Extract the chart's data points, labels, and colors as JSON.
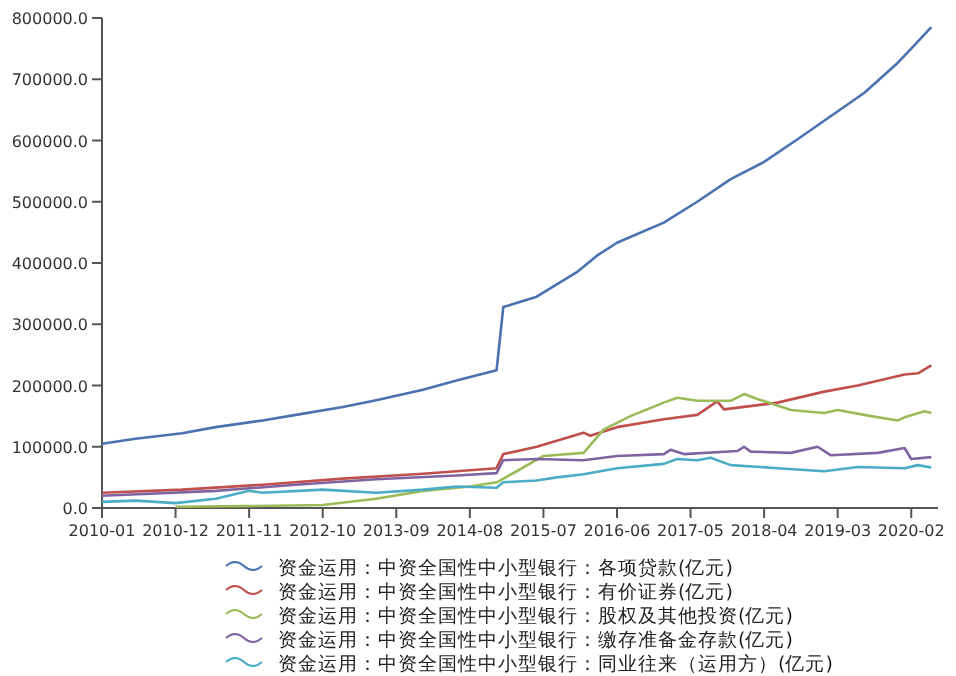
{
  "chart_data": {
    "type": "line",
    "xlim": [
      "2010-01",
      "2020-06"
    ],
    "xticks": [
      "2010-01",
      "2010-12",
      "2011-11",
      "2012-10",
      "2013-09",
      "2014-08",
      "2015-07",
      "2016-06",
      "2017-05",
      "2018-04",
      "2019-03",
      "2020-02"
    ],
    "ylim": [
      0,
      800000
    ],
    "yticks": [
      {
        "value": 0,
        "label": "0.0"
      },
      {
        "value": 100000,
        "label": "100000.0"
      },
      {
        "value": 200000,
        "label": "200000.0"
      },
      {
        "value": 300000,
        "label": "300000.0"
      },
      {
        "value": 400000,
        "label": "400000.0"
      },
      {
        "value": 500000,
        "label": "500000.0"
      },
      {
        "value": 600000,
        "label": "600000.0"
      },
      {
        "value": 700000,
        "label": "700000.0"
      },
      {
        "value": 800000,
        "label": "800000.0"
      }
    ],
    "legend": "bottom",
    "grid": false,
    "marker": "none",
    "series": [
      {
        "name": "资金运用：中资全国性中小型银行：各项贷款(亿元)",
        "color": "#4a72b0",
        "x": [
          "2010-01",
          "2010-06",
          "2011-01",
          "2011-06",
          "2012-01",
          "2012-06",
          "2013-01",
          "2013-06",
          "2014-01",
          "2014-06",
          "2014-12",
          "2015-01",
          "2015-06",
          "2015-12",
          "2016-03",
          "2016-06",
          "2017-01",
          "2017-06",
          "2017-11",
          "2018-04",
          "2018-09",
          "2019-02",
          "2019-07",
          "2019-12",
          "2020-02",
          "2020-05"
        ],
        "values": [
          105000,
          113000,
          122000,
          132000,
          143000,
          152000,
          165000,
          176000,
          193000,
          208000,
          225000,
          328000,
          345000,
          385000,
          412000,
          433000,
          466000,
          500000,
          537000,
          565000,
          602000,
          640000,
          678000,
          727000,
          750000,
          785000
        ]
      },
      {
        "name": "资金运用：中资全国性中小型银行：有价证券(亿元)",
        "color": "#c0504d",
        "x": [
          "2010-01",
          "2011-01",
          "2012-01",
          "2013-01",
          "2014-01",
          "2014-12",
          "2015-01",
          "2015-06",
          "2016-01",
          "2016-02",
          "2016-06",
          "2017-01",
          "2017-06",
          "2017-09",
          "2017-10",
          "2018-06",
          "2019-01",
          "2019-06",
          "2020-01",
          "2020-03",
          "2020-05"
        ],
        "values": [
          25000,
          30000,
          38000,
          48000,
          56000,
          65000,
          88000,
          100000,
          123000,
          118000,
          132000,
          145000,
          152000,
          174000,
          161000,
          172000,
          190000,
          200000,
          218000,
          220000,
          233000
        ]
      },
      {
        "name": "资金运用：中资全国性中小型银行：股权及其他投资(亿元)",
        "color": "#9bbb59",
        "x": [
          "2010-12",
          "2011-10",
          "2012-10",
          "2013-06",
          "2014-01",
          "2014-08",
          "2014-12",
          "2015-03",
          "2015-07",
          "2016-01",
          "2016-04",
          "2016-08",
          "2017-01",
          "2017-03",
          "2017-06",
          "2017-11",
          "2018-01",
          "2018-03",
          "2018-08",
          "2019-01",
          "2019-03",
          "2019-08",
          "2019-12",
          "2020-01",
          "2020-04",
          "2020-05"
        ],
        "values": [
          2000,
          3000,
          5000,
          15000,
          28000,
          35000,
          42000,
          60000,
          85000,
          90000,
          128000,
          150000,
          172000,
          180000,
          175000,
          175000,
          186000,
          178000,
          160000,
          155000,
          160000,
          150000,
          143000,
          148000,
          158000,
          155000
        ]
      },
      {
        "name": "资金运用：中资全国性中小型银行：缴存准备金存款(亿元)",
        "color": "#8064a2",
        "x": [
          "2010-01",
          "2011-06",
          "2012-06",
          "2013-06",
          "2014-06",
          "2014-12",
          "2015-01",
          "2015-06",
          "2016-01",
          "2016-06",
          "2017-01",
          "2017-02",
          "2017-04",
          "2017-12",
          "2018-01",
          "2018-02",
          "2018-08",
          "2018-12",
          "2019-02",
          "2019-09",
          "2020-01",
          "2020-02",
          "2020-05"
        ],
        "values": [
          20000,
          28000,
          38000,
          47000,
          53000,
          57000,
          78000,
          80000,
          78000,
          85000,
          88000,
          95000,
          88000,
          93000,
          100000,
          92000,
          90000,
          100000,
          86000,
          90000,
          98000,
          80000,
          83000
        ]
      },
      {
        "name": "资金运用：中资全国性中小型银行：同业往来（运用方）(亿元)",
        "color": "#4bacc6",
        "x": [
          "2010-01",
          "2010-06",
          "2010-12",
          "2011-06",
          "2011-11",
          "2012-01",
          "2012-10",
          "2013-06",
          "2014-01",
          "2014-06",
          "2014-12",
          "2015-01",
          "2015-06",
          "2015-09",
          "2016-01",
          "2016-06",
          "2017-01",
          "2017-03",
          "2017-06",
          "2017-08",
          "2017-11",
          "2018-06",
          "2019-01",
          "2019-06",
          "2020-01",
          "2020-03",
          "2020-05"
        ],
        "values": [
          10000,
          12000,
          8000,
          15000,
          28000,
          25000,
          30000,
          25000,
          30000,
          35000,
          33000,
          42000,
          45000,
          50000,
          55000,
          65000,
          72000,
          80000,
          78000,
          82000,
          70000,
          65000,
          60000,
          67000,
          65000,
          70000,
          66000
        ]
      }
    ]
  }
}
